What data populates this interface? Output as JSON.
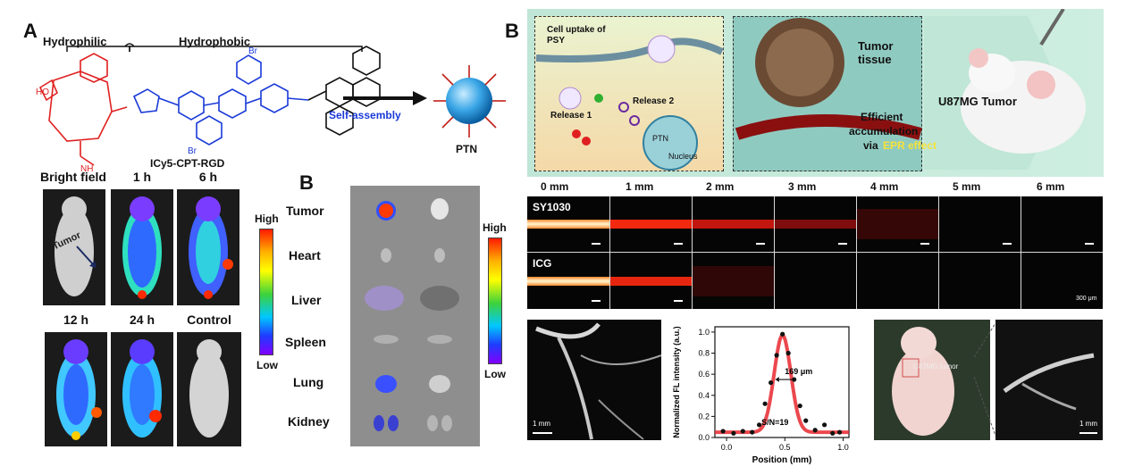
{
  "panelA": {
    "letter": "A",
    "hydrophilic": "Hydrophilic",
    "hydrophobic": "Hydrophobic",
    "compound": "ICy5-CPT-RGD",
    "assembly": "Self-assembly",
    "product": "PTN",
    "timepoints": [
      "Bright field",
      "1 h",
      "6 h",
      "12 h",
      "24 h",
      "Control"
    ],
    "tumor_label": "Tumor",
    "cb_high": "High",
    "cb_low": "Low"
  },
  "panelB_left": {
    "letter": "B",
    "organs": [
      "Tumor",
      "Heart",
      "Liver",
      "Spleen",
      "Lung",
      "Kidney"
    ],
    "cb_high": "High",
    "cb_low": "Low"
  },
  "panelB_right": {
    "letter": "B",
    "cell_uptake": "Cell uptake of PSY",
    "release1": "Release 1",
    "release2": "Release 2",
    "nucleus": "Nucleus",
    "ptn": "PTN",
    "tumor_tissue": "Tumor tissue",
    "efficient": "Efficient",
    "accumulation": "accumulation",
    "via": "via",
    "epr": "EPR effect",
    "u87": "U87MG Tumor",
    "depths": [
      "0 mm",
      "1 mm",
      "2 mm",
      "3 mm",
      "4 mm",
      "5 mm",
      "6 mm"
    ],
    "rows": [
      "SY1030",
      "ICG"
    ],
    "scale_300": "300 μm",
    "scale_1mm_a": "1 mm",
    "scale_1mm_b": "1 mm",
    "u87_small": "U87MG tumor"
  },
  "chart_data": {
    "type": "scatter",
    "xlabel": "Position (mm)",
    "ylabel": "Normalized FL intensity (a.u.)",
    "xlim": [
      -0.1,
      1.05
    ],
    "ylim": [
      0,
      1.05
    ],
    "xticks": [
      "0.0",
      "0.5",
      "1.0"
    ],
    "yticks": [
      "0.0",
      "0.2",
      "0.4",
      "0.6",
      "0.8",
      "1.0"
    ],
    "annotation_width": "169 μm",
    "annotation_sn": "S/N=19",
    "points": [
      {
        "x": -0.03,
        "y": 0.06
      },
      {
        "x": 0.06,
        "y": 0.04
      },
      {
        "x": 0.14,
        "y": 0.06
      },
      {
        "x": 0.22,
        "y": 0.05
      },
      {
        "x": 0.28,
        "y": 0.12
      },
      {
        "x": 0.33,
        "y": 0.32
      },
      {
        "x": 0.38,
        "y": 0.52
      },
      {
        "x": 0.43,
        "y": 0.78
      },
      {
        "x": 0.48,
        "y": 0.98
      },
      {
        "x": 0.53,
        "y": 0.8
      },
      {
        "x": 0.58,
        "y": 0.55
      },
      {
        "x": 0.63,
        "y": 0.3
      },
      {
        "x": 0.68,
        "y": 0.16
      },
      {
        "x": 0.76,
        "y": 0.07
      },
      {
        "x": 0.84,
        "y": 0.12
      },
      {
        "x": 0.91,
        "y": 0.04
      },
      {
        "x": 0.97,
        "y": 0.05
      }
    ],
    "fit": {
      "type": "gaussian",
      "center": 0.48,
      "peak": 0.97,
      "fwhm": 0.169,
      "baseline": 0.05,
      "color": "#e8282f"
    }
  }
}
